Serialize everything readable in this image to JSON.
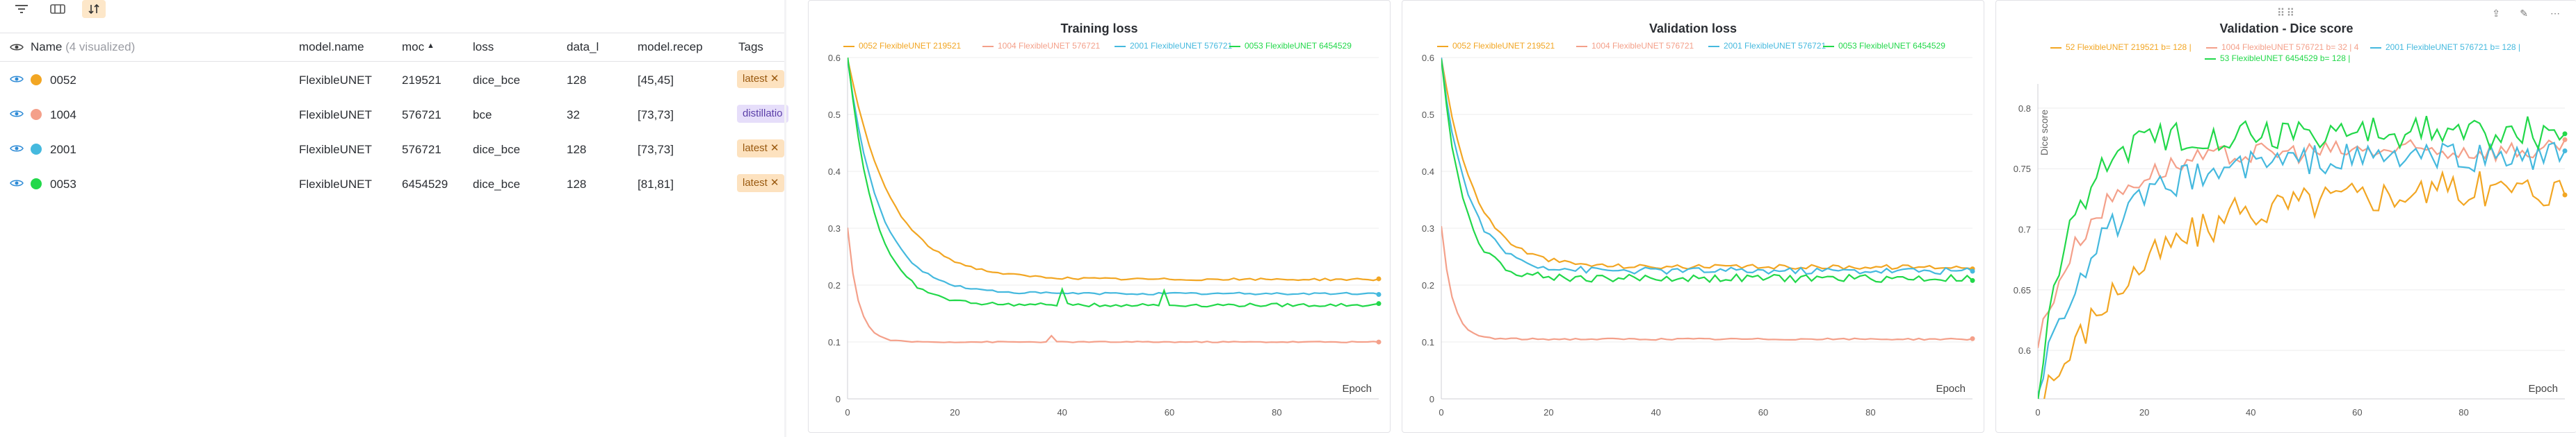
{
  "toolbar": {
    "filter_icon": "filter-icon",
    "columns_icon": "columns-icon",
    "sort_icon": "sort-icon"
  },
  "table": {
    "headers": {
      "name": "Name",
      "name_sub": "(4 visualized)",
      "model_name": "model.name",
      "moc": "moc",
      "loss": "loss",
      "data": "data_l",
      "recep": "model.recep",
      "tags": "Tags"
    },
    "rows": [
      {
        "name": "0052",
        "color": "#f2a623",
        "model": "FlexibleUNET",
        "params": "219521",
        "loss": "dice_bce",
        "data": "128",
        "recep": "[45,45]",
        "tag": "latest",
        "tag_kind": "latest"
      },
      {
        "name": "1004",
        "color": "#f4a08a",
        "model": "FlexibleUNET",
        "params": "576721",
        "loss": "bce",
        "data": "32",
        "recep": "[73,73]",
        "tag": "distillatio",
        "tag_kind": "distill"
      },
      {
        "name": "2001",
        "color": "#45b9de",
        "model": "FlexibleUNET",
        "params": "576721",
        "loss": "dice_bce",
        "data": "128",
        "recep": "[73,73]",
        "tag": "latest",
        "tag_kind": "latest"
      },
      {
        "name": "0053",
        "color": "#22d84a",
        "model": "FlexibleUNET",
        "params": "6454529",
        "loss": "dice_bce",
        "data": "128",
        "recep": "[81,81]",
        "tag": "latest",
        "tag_kind": "latest"
      }
    ]
  },
  "panels": {
    "train": {
      "title": "Training loss",
      "legend": [
        "0052 FlexibleUNET 219521",
        "1004 FlexibleUNET 576721",
        "2001 FlexibleUNET 576721",
        "0053 FlexibleUNET 6454529"
      ],
      "xlabel": "Epoch"
    },
    "val": {
      "title": "Validation loss",
      "legend": [
        "0052 FlexibleUNET 219521",
        "1004 FlexibleUNET 576721",
        "2001 FlexibleUNET 576721",
        "0053 FlexibleUNET 6454529"
      ],
      "xlabel": "Epoch"
    },
    "dice": {
      "title": "Validation - Dice score",
      "legend": [
        "52 FlexibleUNET 219521 b= 128 |",
        "1004 FlexibleUNET 576721 b= 32 | 4",
        "2001 FlexibleUNET 576721 b= 128 |",
        "53 FlexibleUNET 6454529 b= 128 |"
      ],
      "xlabel": "Epoch",
      "ylabel": "Dice score"
    }
  },
  "chart_data": [
    {
      "type": "line",
      "title": "Training loss",
      "xlabel": "Epoch",
      "ylabel": "",
      "xlim": [
        0,
        99
      ],
      "ylim": [
        0,
        0.6
      ],
      "xticks": [
        0,
        20,
        40,
        60,
        80
      ],
      "yticks": [
        0,
        0.1,
        0.2,
        0.3,
        0.4,
        0.5,
        0.6
      ],
      "legend_position": "top",
      "series": [
        {
          "name": "0052 FlexibleUNET 219521",
          "color": "#f2a623",
          "kind": "t0052"
        },
        {
          "name": "1004 FlexibleUNET 576721",
          "color": "#f4a08a",
          "kind": "t1004"
        },
        {
          "name": "2001 FlexibleUNET 576721",
          "color": "#45b9de",
          "kind": "t2001"
        },
        {
          "name": "0053 FlexibleUNET 6454529",
          "color": "#22d84a",
          "kind": "t0053"
        }
      ]
    },
    {
      "type": "line",
      "title": "Validation loss",
      "xlabel": "Epoch",
      "ylabel": "",
      "xlim": [
        0,
        99
      ],
      "ylim": [
        0,
        0.6
      ],
      "xticks": [
        0,
        20,
        40,
        60,
        80
      ],
      "yticks": [
        0,
        0.1,
        0.2,
        0.3,
        0.4,
        0.5,
        0.6
      ],
      "legend_position": "top",
      "series": [
        {
          "name": "0052 FlexibleUNET 219521",
          "color": "#f2a623",
          "kind": "v0052"
        },
        {
          "name": "1004 FlexibleUNET 576721",
          "color": "#f4a08a",
          "kind": "v1004"
        },
        {
          "name": "2001 FlexibleUNET 576721",
          "color": "#45b9de",
          "kind": "v2001"
        },
        {
          "name": "0053 FlexibleUNET 6454529",
          "color": "#22d84a",
          "kind": "v0053"
        }
      ]
    },
    {
      "type": "line",
      "title": "Validation - Dice score",
      "xlabel": "Epoch",
      "ylabel": "Dice score",
      "xlim": [
        0,
        99
      ],
      "ylim": [
        0.56,
        0.82
      ],
      "xticks": [
        0,
        20,
        40,
        60,
        80
      ],
      "yticks": [
        0.6,
        0.65,
        0.7,
        0.75,
        0.8
      ],
      "legend_position": "top",
      "series": [
        {
          "name": "52 FlexibleUNET 219521 b= 128 |",
          "color": "#f2a623",
          "kind": "d0052"
        },
        {
          "name": "1004 FlexibleUNET 576721 b= 32 | 4",
          "color": "#f4a08a",
          "kind": "d1004"
        },
        {
          "name": "2001 FlexibleUNET 576721 b= 128 |",
          "color": "#45b9de",
          "kind": "d2001"
        },
        {
          "name": "53 FlexibleUNET 6454529 b= 128 |",
          "color": "#22d84a",
          "kind": "d0053"
        }
      ]
    }
  ]
}
